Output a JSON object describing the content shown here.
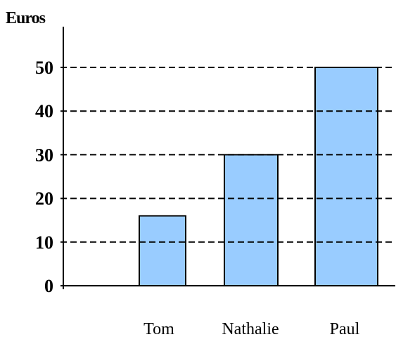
{
  "chart_data": {
    "type": "bar",
    "ylabel": "Euros",
    "xlabel": "",
    "categories": [
      "Tom",
      "Nathalie",
      "Paul"
    ],
    "values": [
      16,
      30,
      50
    ],
    "ylim": [
      0,
      50
    ],
    "yticks": [
      0,
      10,
      20,
      30,
      40,
      50
    ],
    "grid": true,
    "grid_style": "dashed",
    "bar_color": "#99ccff",
    "legend": false
  }
}
